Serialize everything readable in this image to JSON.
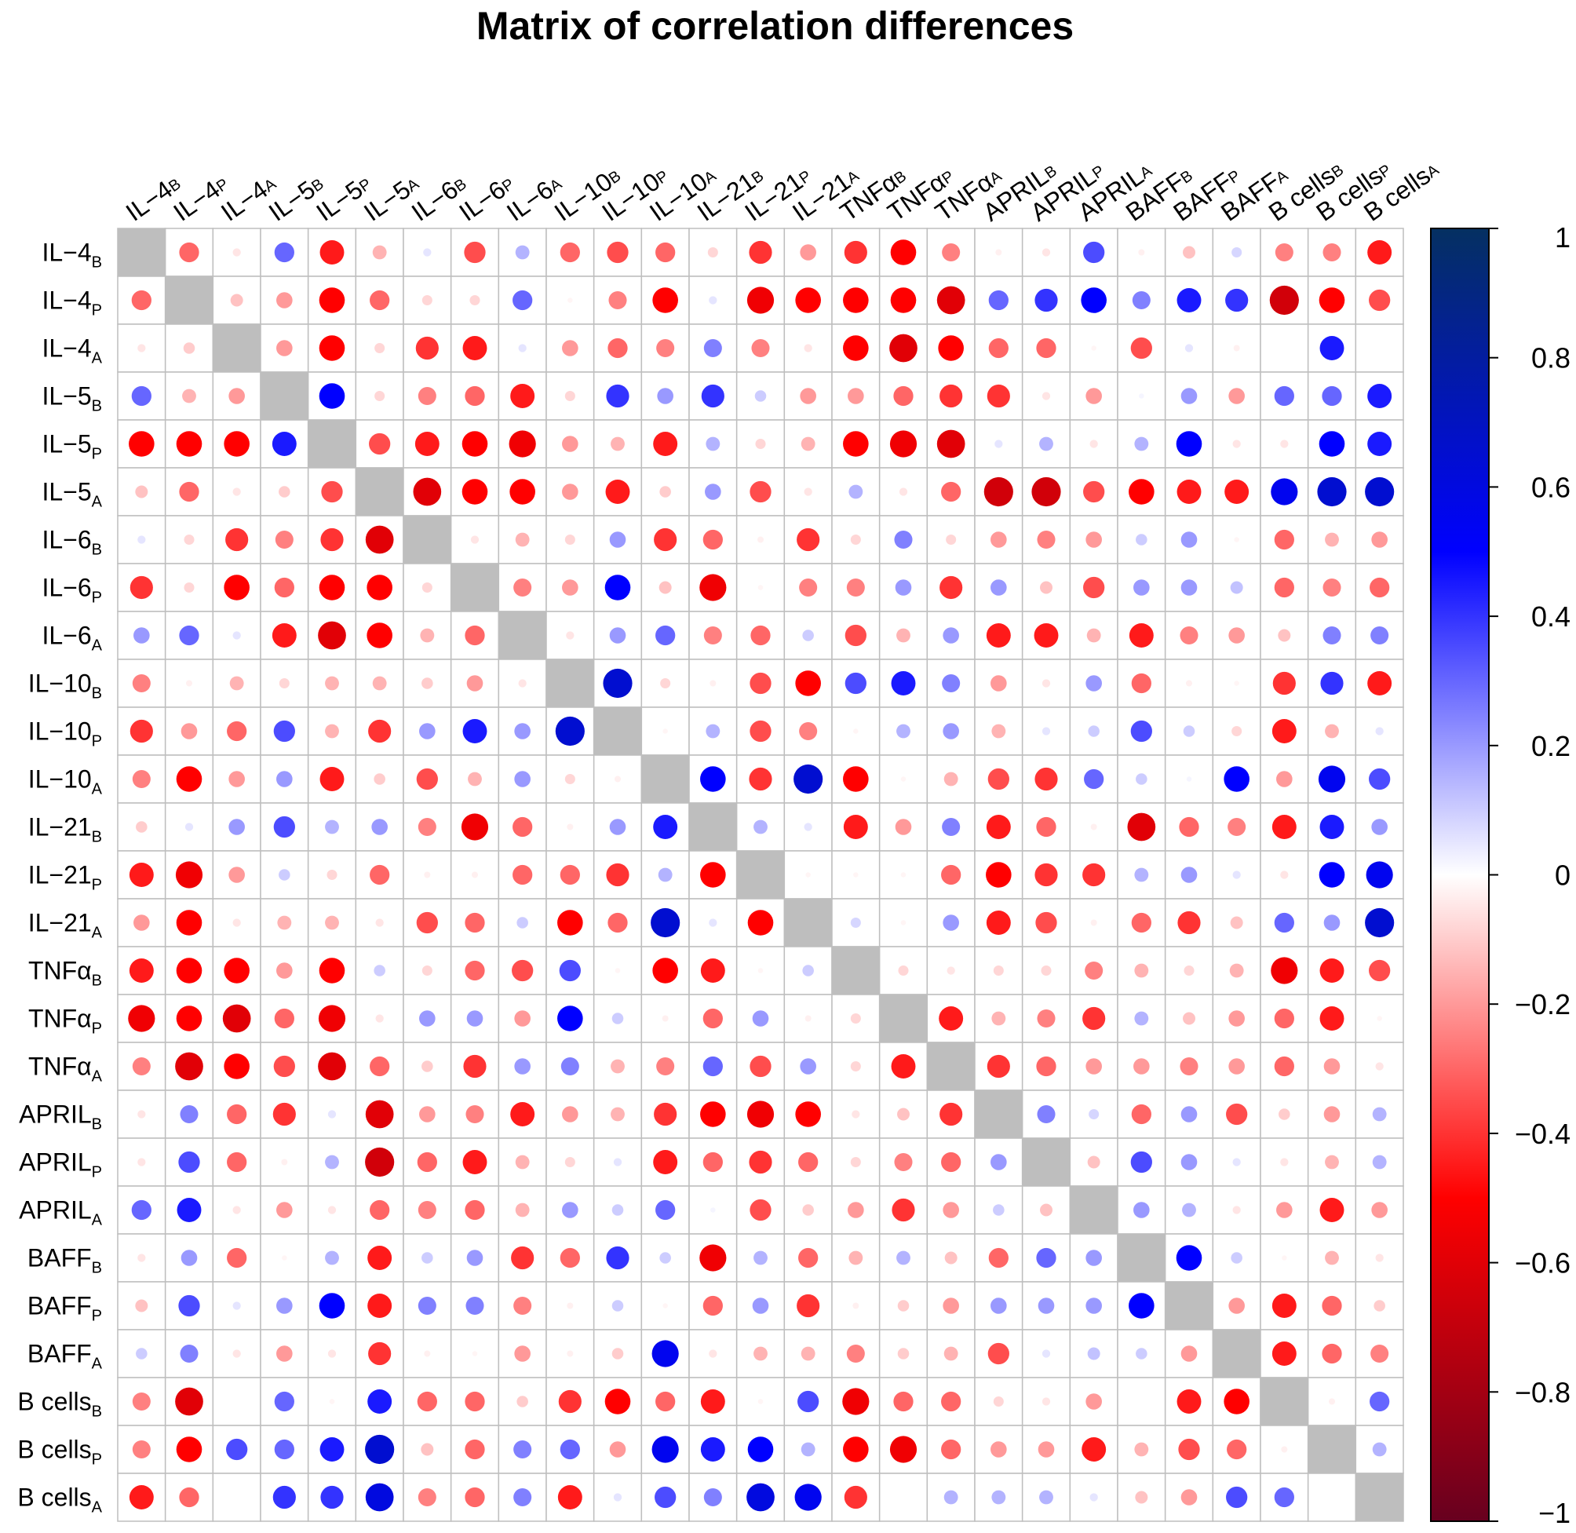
{
  "chart_data": {
    "type": "heatmap",
    "title": "Matrix of correlation differences",
    "labels": [
      {
        "main": "IL−4",
        "sub": "B"
      },
      {
        "main": "IL−4",
        "sub": "P"
      },
      {
        "main": "IL−4",
        "sub": "A"
      },
      {
        "main": "IL−5",
        "sub": "B"
      },
      {
        "main": "IL−5",
        "sub": "P"
      },
      {
        "main": "IL−5",
        "sub": "A"
      },
      {
        "main": "IL−6",
        "sub": "B"
      },
      {
        "main": "IL−6",
        "sub": "P"
      },
      {
        "main": "IL−6",
        "sub": "A"
      },
      {
        "main": "IL−10",
        "sub": "B"
      },
      {
        "main": "IL−10",
        "sub": "P"
      },
      {
        "main": "IL−10",
        "sub": "A"
      },
      {
        "main": "IL−21",
        "sub": "B"
      },
      {
        "main": "IL−21",
        "sub": "P"
      },
      {
        "main": "IL−21",
        "sub": "A"
      },
      {
        "main": "TNFα",
        "sub": "B"
      },
      {
        "main": "TNFα",
        "sub": "P"
      },
      {
        "main": "TNFα",
        "sub": "A"
      },
      {
        "main": "APRIL",
        "sub": "B"
      },
      {
        "main": "APRIL",
        "sub": "P"
      },
      {
        "main": "APRIL",
        "sub": "A"
      },
      {
        "main": "BAFF",
        "sub": "B"
      },
      {
        "main": "BAFF",
        "sub": "P"
      },
      {
        "main": "BAFF",
        "sub": "A"
      },
      {
        "main": "B  cells",
        "sub": "B"
      },
      {
        "main": "B  cells",
        "sub": "P"
      },
      {
        "main": "B  cells",
        "sub": "A"
      }
    ],
    "matrix": [
      [
        null,
        -0.3,
        -0.05,
        0.3,
        -0.45,
        -0.15,
        0.05,
        -0.35,
        0.15,
        -0.3,
        -0.35,
        -0.3,
        -0.08,
        -0.4,
        -0.2,
        -0.4,
        -0.5,
        -0.25,
        -0.03,
        -0.05,
        0.35,
        -0.03,
        -0.12,
        0.08,
        -0.25,
        -0.25,
        -0.45
      ],
      [
        -0.3,
        null,
        -0.12,
        -0.2,
        -0.5,
        -0.3,
        -0.08,
        -0.08,
        0.3,
        -0.02,
        -0.25,
        -0.5,
        0.05,
        -0.55,
        -0.5,
        -0.5,
        -0.5,
        -0.6,
        0.3,
        0.4,
        0.5,
        0.25,
        0.45,
        0.4,
        -0.65,
        -0.5,
        -0.35
      ],
      [
        -0.05,
        -0.1,
        null,
        -0.2,
        -0.5,
        -0.08,
        -0.4,
        -0.45,
        0.05,
        -0.2,
        -0.3,
        -0.25,
        0.25,
        -0.25,
        -0.05,
        -0.5,
        -0.6,
        -0.5,
        -0.3,
        -0.3,
        -0.02,
        -0.35,
        0.05,
        -0.03,
        0.0,
        0.45,
        0.0
      ],
      [
        0.3,
        -0.15,
        -0.2,
        null,
        0.5,
        -0.08,
        -0.25,
        -0.3,
        -0.45,
        -0.08,
        0.4,
        0.2,
        0.4,
        0.1,
        -0.2,
        -0.2,
        -0.3,
        -0.4,
        -0.4,
        -0.05,
        -0.2,
        0.02,
        0.2,
        -0.2,
        0.3,
        0.3,
        0.45
      ],
      [
        -0.5,
        -0.5,
        -0.5,
        0.45,
        null,
        -0.35,
        -0.45,
        -0.5,
        -0.55,
        -0.2,
        -0.15,
        -0.45,
        0.15,
        -0.08,
        -0.15,
        -0.5,
        -0.55,
        -0.6,
        0.05,
        0.15,
        -0.05,
        0.15,
        0.5,
        -0.05,
        -0.05,
        0.5,
        0.45
      ],
      [
        -0.12,
        -0.3,
        -0.05,
        -0.1,
        -0.35,
        null,
        -0.6,
        -0.5,
        -0.5,
        -0.2,
        -0.45,
        -0.1,
        0.2,
        -0.35,
        -0.05,
        0.15,
        -0.05,
        -0.3,
        -0.65,
        -0.65,
        -0.35,
        -0.5,
        -0.45,
        -0.45,
        0.55,
        0.65,
        0.65
      ],
      [
        0.05,
        -0.08,
        -0.4,
        -0.25,
        -0.4,
        -0.6,
        null,
        -0.05,
        -0.15,
        -0.08,
        0.2,
        -0.4,
        -0.3,
        -0.03,
        -0.4,
        -0.08,
        0.25,
        -0.08,
        -0.2,
        -0.25,
        -0.2,
        0.1,
        0.2,
        -0.02,
        -0.3,
        -0.15,
        -0.2
      ],
      [
        -0.4,
        -0.08,
        -0.5,
        -0.3,
        -0.5,
        -0.5,
        -0.08,
        null,
        -0.25,
        -0.2,
        0.5,
        -0.12,
        -0.55,
        -0.02,
        -0.25,
        -0.25,
        0.2,
        -0.4,
        0.2,
        -0.12,
        -0.35,
        0.2,
        0.2,
        0.12,
        -0.3,
        -0.25,
        -0.3
      ],
      [
        0.2,
        0.3,
        0.05,
        -0.45,
        -0.6,
        -0.5,
        -0.15,
        -0.3,
        null,
        -0.05,
        0.2,
        0.3,
        -0.25,
        -0.3,
        0.1,
        -0.35,
        -0.15,
        0.2,
        -0.45,
        -0.45,
        -0.15,
        -0.45,
        -0.25,
        -0.2,
        -0.12,
        0.25,
        0.25
      ],
      [
        -0.25,
        -0.03,
        -0.15,
        -0.08,
        -0.15,
        -0.15,
        -0.1,
        -0.2,
        -0.05,
        null,
        0.65,
        -0.08,
        -0.03,
        -0.35,
        -0.5,
        0.35,
        0.45,
        0.25,
        -0.2,
        -0.05,
        0.2,
        -0.3,
        -0.03,
        -0.02,
        -0.4,
        0.4,
        -0.45
      ],
      [
        -0.4,
        -0.2,
        -0.3,
        0.35,
        -0.15,
        -0.4,
        0.2,
        0.45,
        0.2,
        0.65,
        null,
        -0.02,
        0.15,
        -0.35,
        -0.25,
        -0.02,
        0.15,
        0.2,
        -0.15,
        0.05,
        0.1,
        0.35,
        0.1,
        -0.08,
        -0.45,
        -0.15,
        0.05
      ],
      [
        -0.25,
        -0.5,
        -0.2,
        0.2,
        -0.45,
        -0.1,
        -0.35,
        -0.15,
        0.2,
        -0.08,
        -0.03,
        null,
        0.5,
        -0.4,
        0.65,
        -0.5,
        -0.02,
        -0.15,
        -0.35,
        -0.4,
        0.3,
        0.1,
        0.02,
        0.5,
        -0.2,
        0.55,
        0.35
      ],
      [
        -0.1,
        0.05,
        0.2,
        0.35,
        0.15,
        0.2,
        -0.25,
        -0.55,
        -0.3,
        -0.03,
        0.2,
        0.45,
        null,
        0.15,
        0.05,
        -0.45,
        -0.2,
        0.25,
        -0.45,
        -0.3,
        -0.03,
        -0.6,
        -0.3,
        -0.25,
        -0.45,
        0.45,
        0.2
      ],
      [
        -0.45,
        -0.55,
        -0.2,
        0.1,
        -0.08,
        -0.3,
        -0.03,
        -0.03,
        -0.3,
        -0.3,
        -0.4,
        0.15,
        -0.5,
        null,
        -0.02,
        -0.02,
        -0.02,
        -0.3,
        -0.5,
        -0.4,
        -0.4,
        0.15,
        0.2,
        0.05,
        -0.05,
        0.5,
        0.55
      ],
      [
        -0.2,
        -0.5,
        -0.05,
        -0.15,
        -0.15,
        -0.05,
        -0.35,
        -0.3,
        0.1,
        -0.5,
        -0.3,
        0.65,
        0.05,
        -0.5,
        null,
        0.08,
        -0.02,
        0.2,
        -0.45,
        -0.35,
        -0.03,
        -0.3,
        -0.4,
        -0.12,
        0.3,
        0.2,
        0.65
      ],
      [
        -0.45,
        -0.5,
        -0.5,
        -0.2,
        -0.5,
        0.1,
        -0.08,
        -0.3,
        -0.35,
        0.35,
        -0.02,
        -0.5,
        -0.45,
        -0.02,
        0.1,
        null,
        -0.08,
        -0.05,
        -0.08,
        -0.08,
        -0.25,
        -0.15,
        -0.08,
        -0.15,
        -0.55,
        -0.45,
        -0.35
      ],
      [
        -0.55,
        -0.5,
        -0.6,
        -0.3,
        -0.55,
        -0.05,
        0.2,
        0.2,
        -0.2,
        0.5,
        0.1,
        -0.03,
        -0.3,
        0.2,
        -0.03,
        -0.08,
        null,
        -0.45,
        -0.15,
        -0.25,
        -0.4,
        0.15,
        -0.12,
        -0.2,
        -0.3,
        -0.45,
        -0.02
      ],
      [
        -0.25,
        -0.6,
        -0.5,
        -0.35,
        -0.6,
        -0.3,
        -0.1,
        -0.4,
        0.2,
        0.25,
        -0.15,
        -0.25,
        0.3,
        -0.35,
        0.2,
        -0.08,
        -0.45,
        null,
        -0.4,
        -0.3,
        -0.2,
        -0.2,
        -0.25,
        -0.2,
        -0.3,
        -0.2,
        -0.05
      ],
      [
        -0.05,
        0.25,
        -0.3,
        -0.4,
        0.05,
        -0.6,
        -0.2,
        -0.25,
        -0.45,
        -0.2,
        -0.15,
        -0.4,
        -0.5,
        -0.55,
        -0.5,
        -0.05,
        -0.12,
        -0.4,
        null,
        0.25,
        0.08,
        -0.3,
        0.2,
        -0.35,
        -0.1,
        -0.2,
        0.15
      ],
      [
        -0.05,
        0.35,
        -0.3,
        -0.03,
        0.15,
        -0.65,
        -0.3,
        -0.45,
        -0.15,
        -0.08,
        0.05,
        -0.45,
        -0.3,
        -0.4,
        -0.3,
        -0.08,
        -0.25,
        -0.3,
        0.2,
        null,
        -0.12,
        0.35,
        0.2,
        0.05,
        -0.05,
        -0.15,
        0.15
      ],
      [
        0.3,
        0.45,
        -0.05,
        -0.2,
        -0.05,
        -0.3,
        -0.25,
        -0.3,
        -0.15,
        0.2,
        0.1,
        0.3,
        0.02,
        -0.35,
        -0.1,
        -0.2,
        -0.4,
        -0.2,
        0.1,
        -0.12,
        null,
        0.2,
        0.15,
        -0.05,
        -0.2,
        -0.45,
        -0.2
      ],
      [
        -0.05,
        0.2,
        -0.3,
        -0.02,
        0.15,
        -0.45,
        0.1,
        0.2,
        -0.4,
        -0.3,
        0.4,
        0.1,
        -0.55,
        0.15,
        -0.3,
        -0.15,
        0.15,
        -0.12,
        -0.3,
        0.3,
        0.2,
        null,
        0.5,
        0.1,
        -0.02,
        -0.15,
        -0.05
      ],
      [
        -0.12,
        0.35,
        0.05,
        0.2,
        0.5,
        -0.45,
        0.25,
        0.25,
        -0.25,
        -0.03,
        0.1,
        -0.02,
        -0.3,
        0.2,
        -0.4,
        -0.03,
        -0.1,
        -0.2,
        0.2,
        0.2,
        0.2,
        0.5,
        null,
        -0.2,
        -0.45,
        -0.3,
        -0.1
      ],
      [
        0.1,
        0.25,
        -0.05,
        -0.2,
        -0.05,
        -0.4,
        -0.03,
        -0.02,
        -0.2,
        -0.03,
        -0.1,
        0.55,
        -0.05,
        -0.15,
        -0.15,
        -0.25,
        -0.1,
        -0.15,
        -0.35,
        0.05,
        0.12,
        0.1,
        -0.2,
        null,
        -0.45,
        -0.3,
        -0.25
      ],
      [
        -0.25,
        -0.6,
        0.0,
        0.3,
        -0.02,
        0.45,
        -0.3,
        -0.3,
        -0.1,
        -0.4,
        -0.5,
        -0.3,
        -0.45,
        -0.02,
        0.35,
        -0.55,
        -0.3,
        -0.3,
        -0.08,
        -0.05,
        -0.2,
        0.0,
        -0.45,
        -0.5,
        null,
        -0.03,
        0.3
      ],
      [
        -0.25,
        -0.5,
        0.35,
        0.3,
        0.45,
        0.65,
        -0.12,
        -0.3,
        0.25,
        0.3,
        -0.2,
        0.55,
        0.45,
        0.5,
        0.15,
        -0.5,
        -0.55,
        -0.3,
        -0.2,
        -0.2,
        -0.45,
        -0.15,
        -0.35,
        -0.3,
        -0.03,
        null,
        0.15
      ],
      [
        -0.45,
        -0.3,
        0.0,
        0.4,
        0.4,
        0.6,
        -0.25,
        -0.3,
        0.25,
        -0.45,
        0.05,
        0.35,
        0.25,
        0.6,
        0.55,
        -0.4,
        0.0,
        0.15,
        0.15,
        0.15,
        0.05,
        -0.12,
        -0.2,
        0.35,
        0.3,
        null,
        null
      ]
    ],
    "colorbar": {
      "range": [
        -1,
        1
      ],
      "ticks": [
        1,
        0.8,
        0.6,
        0.4,
        0.2,
        0,
        -0.2,
        -0.4,
        -0.6,
        -0.8,
        -1
      ],
      "tick_labels": [
        "1",
        "0.8",
        "0.6",
        "0.4",
        "0.2",
        "0",
        "−0.2",
        "−0.4",
        "−0.6",
        "−0.8",
        "−1"
      ],
      "colors": [
        "#67001F",
        "#FF0000",
        "#FFFFFF",
        "#0000FF",
        "#053061"
      ]
    },
    "diagonal_color": "#BEBEBE",
    "grid_color": "#BEBEBE"
  }
}
